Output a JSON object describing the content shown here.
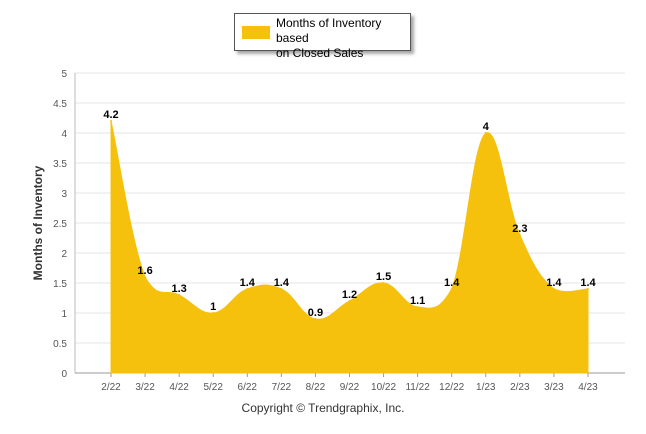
{
  "chart_data": {
    "type": "area",
    "categories": [
      "2/22",
      "3/22",
      "4/22",
      "5/22",
      "6/22",
      "7/22",
      "8/22",
      "9/22",
      "10/22",
      "11/22",
      "12/22",
      "1/23",
      "2/23",
      "3/23",
      "4/23"
    ],
    "series": [
      {
        "name": "Months of Inventory based on Closed Sales",
        "values": [
          4.2,
          1.6,
          1.3,
          1,
          1.4,
          1.4,
          0.9,
          1.2,
          1.5,
          1.1,
          1.4,
          4,
          2.3,
          1.4,
          1.4
        ]
      }
    ],
    "data_labels": [
      "4.2",
      "1.6",
      "1.3",
      "1",
      "1.4",
      "1.4",
      "0.9",
      "1.2",
      "1.5",
      "1.1",
      "1.4",
      "4",
      "2.3",
      "1.4",
      "1.4"
    ],
    "ylabel": "Months of Inventory",
    "xlabel": "",
    "ylim": [
      0,
      5
    ],
    "yticks": [
      "0",
      "0.5",
      "1",
      "1.5",
      "2",
      "2.5",
      "3",
      "3.5",
      "4",
      "4.5",
      "5"
    ],
    "grid": true,
    "legend_position": "top-center",
    "color": "#F5C10C"
  },
  "legend": {
    "label_line1": "Months of Inventory based",
    "label_line2": "on Closed Sales"
  },
  "footer": {
    "copyright": "Copyright © Trendgraphix, Inc."
  }
}
